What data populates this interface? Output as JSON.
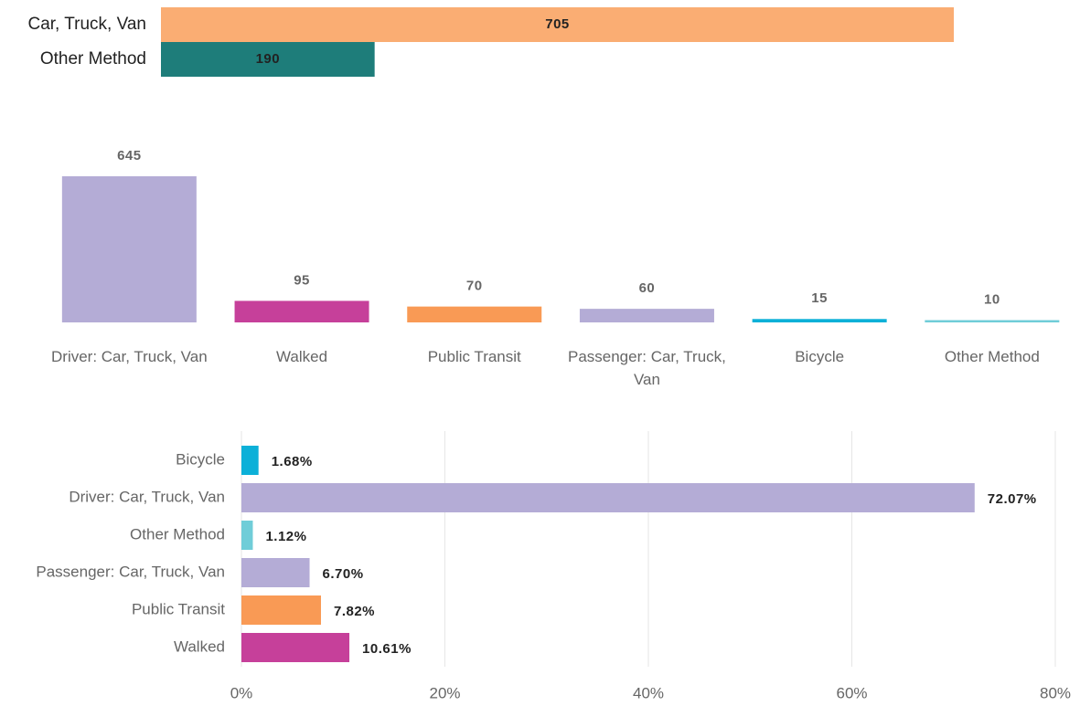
{
  "chart_data": [
    {
      "type": "hbar",
      "categories": [
        "Car, Truck, Van",
        "Other Method"
      ],
      "values": [
        705,
        190
      ],
      "colors": [
        "#faad73",
        "#1e7d7a"
      ]
    },
    {
      "type": "bar",
      "categories": [
        "Driver: Car, Truck, Van",
        "Walked",
        "Public Transit",
        "Passenger: Car, Truck, Van",
        "Bicycle",
        "Other Method"
      ],
      "values": [
        645,
        95,
        70,
        60,
        15,
        10
      ],
      "colors": [
        "#b4acd6",
        "#c6409a",
        "#f99a55",
        "#b4acd6",
        "#0cb0d8",
        "#70cdd8"
      ]
    },
    {
      "type": "hbar",
      "categories": [
        "Bicycle",
        "Driver: Car, Truck, Van",
        "Other Method",
        "Passenger: Car, Truck, Van",
        "Public Transit",
        "Walked"
      ],
      "values": [
        1.68,
        72.07,
        1.12,
        6.7,
        7.82,
        10.61
      ],
      "value_labels": [
        "1.68%",
        "72.07%",
        "1.12%",
        "6.70%",
        "7.82%",
        "10.61%"
      ],
      "colors": [
        "#0cb0d8",
        "#b4acd6",
        "#70cdd8",
        "#b4acd6",
        "#f99a55",
        "#c6409a"
      ],
      "xlim": [
        0,
        80
      ],
      "xticks": [
        {
          "value": 0,
          "label": "0%"
        },
        {
          "value": 20,
          "label": "20%"
        },
        {
          "value": 40,
          "label": "40%"
        },
        {
          "value": 60,
          "label": "60%"
        },
        {
          "value": 80,
          "label": "80%"
        }
      ],
      "grid": true
    }
  ]
}
